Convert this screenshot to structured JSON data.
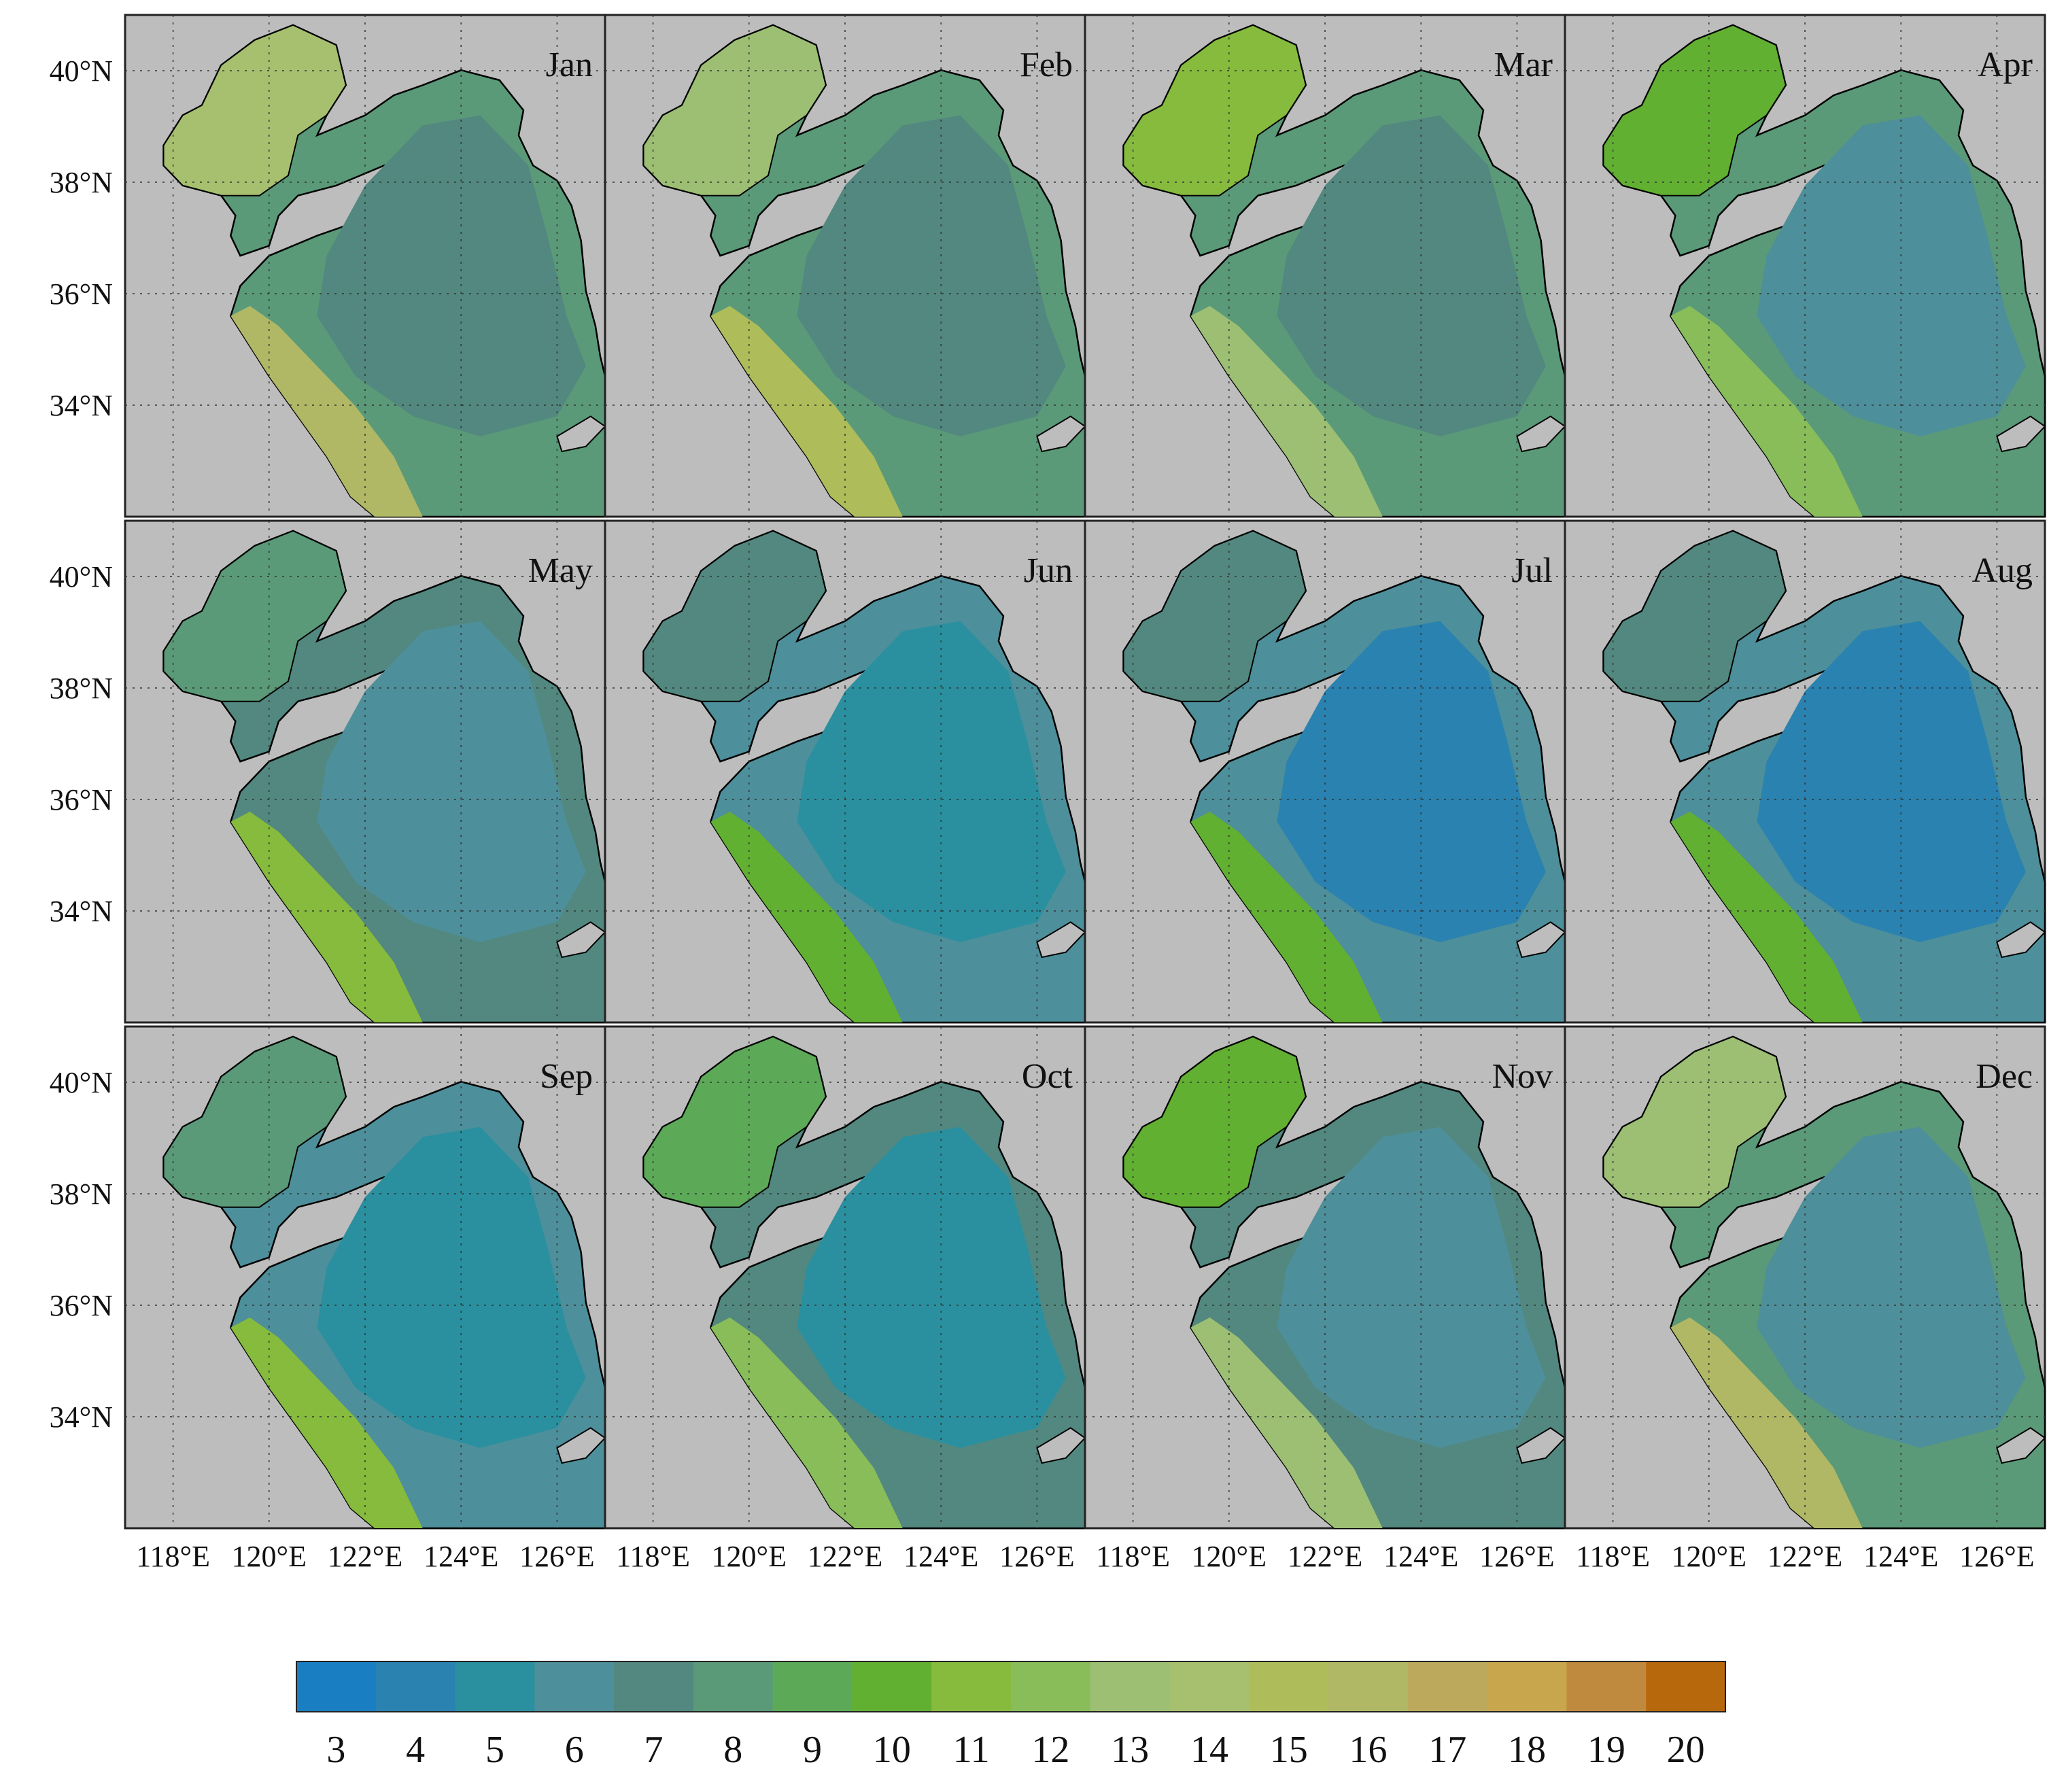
{
  "figure": {
    "months": [
      "Jan",
      "Feb",
      "Mar",
      "Apr",
      "May",
      "Jun",
      "Jul",
      "Aug",
      "Sep",
      "Oct",
      "Nov",
      "Dec"
    ],
    "lat_labels": [
      "40°N",
      "38°N",
      "36°N",
      "34°N"
    ],
    "lon_labels": [
      "118°E",
      "120°E",
      "122°E",
      "124°E",
      "126°E"
    ],
    "land_color": "#bdbdbd",
    "coast_color": "#000000"
  },
  "colorbar": {
    "ticks": [
      "3",
      "4",
      "5",
      "6",
      "7",
      "8",
      "9",
      "10",
      "11",
      "12",
      "13",
      "14",
      "15",
      "16",
      "17",
      "18",
      "19",
      "20"
    ],
    "colors": [
      "#1a7ec2",
      "#2a82b0",
      "#2a90a0",
      "#4d8f9a",
      "#52887f",
      "#5a9a78",
      "#5caa58",
      "#62b032",
      "#86bb3e",
      "#88bd5a",
      "#9cbf74",
      "#a6c070",
      "#aebc5a",
      "#b0b866",
      "#bca95c",
      "#c8a64e",
      "#c08a3e",
      "#b8680c"
    ],
    "min": 3,
    "max": 20
  },
  "chart_data": {
    "type": "heatmap",
    "panels": [
      {
        "month": "Jan",
        "offshore": 6.5,
        "bohai": 14,
        "north_jiangsu": 16
      },
      {
        "month": "Feb",
        "offshore": 6.5,
        "bohai": 13,
        "north_jiangsu": 15
      },
      {
        "month": "Mar",
        "offshore": 6.5,
        "bohai": 11,
        "north_jiangsu": 13
      },
      {
        "month": "Apr",
        "offshore": 6,
        "bohai": 10,
        "north_jiangsu": 12
      },
      {
        "month": "May",
        "offshore": 5.5,
        "bohai": 8,
        "north_jiangsu": 11
      },
      {
        "month": "Jun",
        "offshore": 4.5,
        "bohai": 7,
        "north_jiangsu": 10
      },
      {
        "month": "Jul",
        "offshore": 4,
        "bohai": 7,
        "north_jiangsu": 10
      },
      {
        "month": "Aug",
        "offshore": 4,
        "bohai": 7,
        "north_jiangsu": 10
      },
      {
        "month": "Sep",
        "offshore": 4.5,
        "bohai": 8,
        "north_jiangsu": 11
      },
      {
        "month": "Oct",
        "offshore": 5,
        "bohai": 9,
        "north_jiangsu": 12
      },
      {
        "month": "Nov",
        "offshore": 5.5,
        "bohai": 10,
        "north_jiangsu": 13
      },
      {
        "month": "Dec",
        "offshore": 6,
        "bohai": 13,
        "north_jiangsu": 16
      }
    ],
    "xlim": [
      117,
      127
    ],
    "ylim": [
      32,
      41
    ]
  }
}
